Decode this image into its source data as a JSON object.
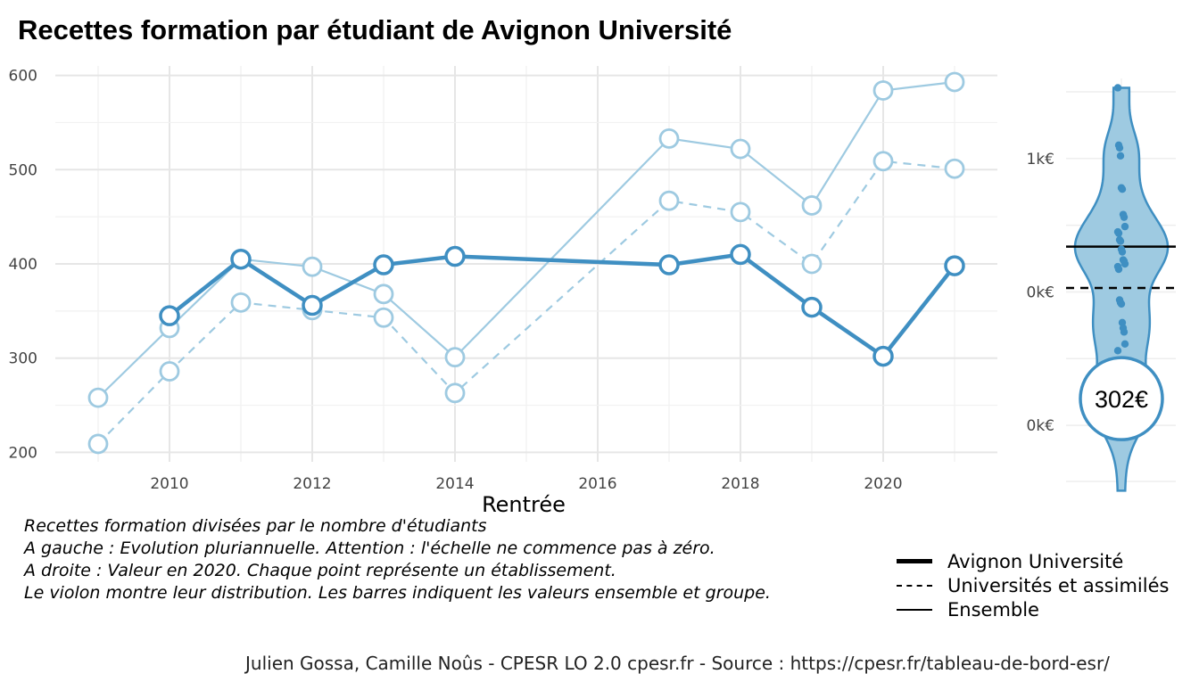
{
  "title": "Recettes formation par étudiant de Avignon Université",
  "chart_data": [
    {
      "type": "line",
      "xlabel": "Rentrée",
      "ylabel": "",
      "xlim": [
        2008.4,
        2021.6
      ],
      "ylim": [
        190,
        610
      ],
      "x_ticks": [
        2010,
        2012,
        2014,
        2016,
        2018,
        2020
      ],
      "y_ticks": [
        200,
        300,
        400,
        500,
        600
      ],
      "grid": true,
      "series": [
        {
          "name": "Avignon Université",
          "style": "solid-bold",
          "color": "#3f8fc2",
          "points": [
            {
              "x": 2010,
              "y": 345
            },
            {
              "x": 2011,
              "y": 405
            },
            {
              "x": 2012,
              "y": 356
            },
            {
              "x": 2013,
              "y": 399
            },
            {
              "x": 2014,
              "y": 408
            },
            {
              "x": 2017,
              "y": 399
            },
            {
              "x": 2018,
              "y": 410
            },
            {
              "x": 2019,
              "y": 354
            },
            {
              "x": 2020,
              "y": 302
            },
            {
              "x": 2021,
              "y": 398
            }
          ]
        },
        {
          "name": "Universités et assimilés",
          "style": "dashed",
          "color": "#9ecae1",
          "points": [
            {
              "x": 2009,
              "y": 209
            },
            {
              "x": 2010,
              "y": 286
            },
            {
              "x": 2011,
              "y": 359
            },
            {
              "x": 2012,
              "y": 351
            },
            {
              "x": 2013,
              "y": 343
            },
            {
              "x": 2014,
              "y": 263
            },
            {
              "x": 2017,
              "y": 467
            },
            {
              "x": 2018,
              "y": 455
            },
            {
              "x": 2019,
              "y": 400
            },
            {
              "x": 2020,
              "y": 509
            },
            {
              "x": 2021,
              "y": 501
            }
          ]
        },
        {
          "name": "Ensemble",
          "style": "solid-thin",
          "color": "#9ecae1",
          "points": [
            {
              "x": 2009,
              "y": 258
            },
            {
              "x": 2010,
              "y": 332
            },
            {
              "x": 2011,
              "y": 405
            },
            {
              "x": 2012,
              "y": 397
            },
            {
              "x": 2013,
              "y": 368
            },
            {
              "x": 2014,
              "y": 301
            },
            {
              "x": 2017,
              "y": 533
            },
            {
              "x": 2018,
              "y": 522
            },
            {
              "x": 2019,
              "y": 462
            },
            {
              "x": 2020,
              "y": 584
            },
            {
              "x": 2021,
              "y": 593
            }
          ]
        }
      ]
    },
    {
      "type": "violin",
      "y_ticks": [
        {
          "label": "1k€",
          "value": 1000
        },
        {
          "label": "0k€",
          "value": 0
        },
        {
          "label": "0k€",
          "value": -1000
        }
      ],
      "ylim": [
        -1300,
        1600
      ],
      "value_label": "302€",
      "label_value": -800,
      "ensemble_line": 340,
      "group_line": 30,
      "color": "#3f8fc2",
      "fill": "#9ecae1",
      "points": [
        1530,
        1100,
        1080,
        1020,
        780,
        770,
        580,
        560,
        490,
        450,
        440,
        390,
        380,
        320,
        300,
        240,
        230,
        210,
        190,
        170,
        -60,
        -80,
        -90,
        -230,
        -270,
        -300,
        -390,
        -440
      ]
    }
  ],
  "caption": [
    "Recettes formation divisées par le nombre d'étudiants",
    "A gauche : Evolution pluriannuelle. Attention : l'échelle ne commence pas à zéro.",
    "A droite : Valeur en 2020. Chaque point représente un établissement.",
    "Le violon montre leur distribution. Les barres indiquent les valeurs ensemble et groupe."
  ],
  "legend": [
    {
      "label": "Avignon Université",
      "style": "thick"
    },
    {
      "label": "Universités et assimilés",
      "style": "dashed"
    },
    {
      "label": "Ensemble",
      "style": "thin"
    }
  ],
  "footer": "Julien Gossa, Camille Noûs - CPESR LO 2.0 cpesr.fr - Source : https://cpesr.fr/tableau-de-bord-esr/"
}
